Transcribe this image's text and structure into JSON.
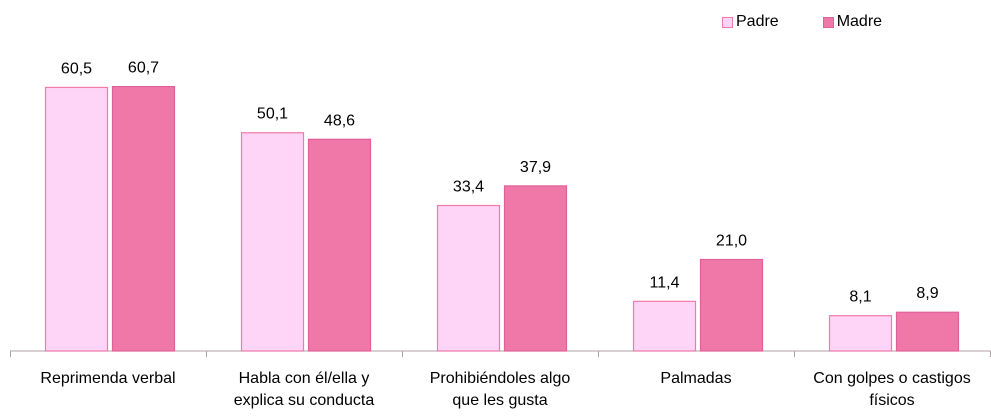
{
  "chart_data": {
    "type": "bar",
    "categories": [
      [
        "Reprimenda verbal"
      ],
      [
        "Habla con él/ella y",
        "explica su conducta"
      ],
      [
        "Prohibiéndoles algo",
        "que les gusta"
      ],
      [
        "Palmadas"
      ],
      [
        "Con golpes o castigos",
        "físicos"
      ]
    ],
    "series": [
      {
        "name": "Padre",
        "values": [
          60.5,
          50.1,
          33.4,
          11.4,
          8.1
        ],
        "labels": [
          "60,5",
          "50,1",
          "33,4",
          "11,4",
          "8,1"
        ],
        "color": "#FFD5F7",
        "border": "#F07AA8"
      },
      {
        "name": "Madre",
        "values": [
          60.7,
          48.6,
          37.9,
          21.0,
          8.9
        ],
        "labels": [
          "60,7",
          "48,6",
          "37,9",
          "21,0",
          "8,9"
        ],
        "color": "#F078A8",
        "border": "#E0609A"
      }
    ],
    "ylim": [
      0,
      70
    ],
    "title": "",
    "xlabel": "",
    "ylabel": "",
    "grid": false,
    "legend_position": "top-right",
    "axis_color": "#B0A0A8"
  }
}
